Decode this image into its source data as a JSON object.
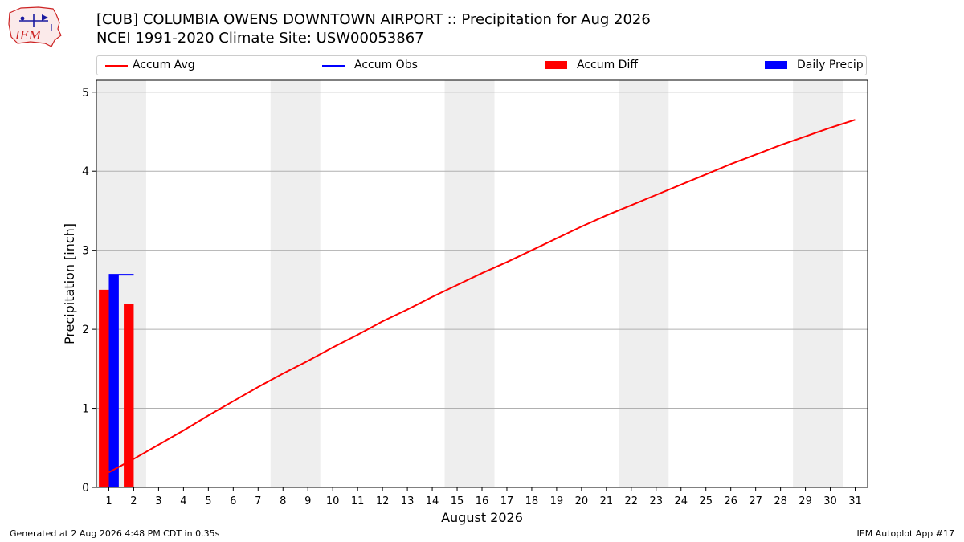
{
  "header": {
    "line1": "[CUB] COLUMBIA OWENS DOWNTOWN AIRPORT :: Precipitation for Aug 2026",
    "line2": "NCEI 1991-2020 Climate Site: USW00053867"
  },
  "logo": {
    "text": "IEM"
  },
  "legend": {
    "items": [
      {
        "label": "Accum Avg",
        "kind": "line",
        "color": "#ff0000"
      },
      {
        "label": "Accum Obs",
        "kind": "line",
        "color": "#0000ff"
      },
      {
        "label": "Accum Diff",
        "kind": "box",
        "color": "#ff0000"
      },
      {
        "label": "Daily Precip",
        "kind": "box",
        "color": "#0000ff"
      }
    ]
  },
  "footer": {
    "left": "Generated at 2 Aug 2026 4:48 PM CDT in 0.35s",
    "right": "IEM Autoplot App #17"
  },
  "chart_data": {
    "type": "bar",
    "xlabel": "August 2026",
    "ylabel": "Precipitation [inch]",
    "xlim": [
      0.5,
      31.5
    ],
    "ylim": [
      0,
      5.15
    ],
    "x": [
      1,
      2,
      3,
      4,
      5,
      6,
      7,
      8,
      9,
      10,
      11,
      12,
      13,
      14,
      15,
      16,
      17,
      18,
      19,
      20,
      21,
      22,
      23,
      24,
      25,
      26,
      27,
      28,
      29,
      30,
      31
    ],
    "yticks": [
      0,
      1,
      2,
      3,
      4,
      5
    ],
    "grid": "horizontal",
    "weekend_shading": [
      [
        0.5,
        2.5
      ],
      [
        7.5,
        9.5
      ],
      [
        14.5,
        16.5
      ],
      [
        21.5,
        23.5
      ],
      [
        28.5,
        30.5
      ]
    ],
    "shade_color": "#eeeeee",
    "series": [
      {
        "name": "Accum Avg",
        "kind": "line",
        "color": "#ff0000",
        "x": [
          1,
          2,
          3,
          4,
          5,
          6,
          7,
          8,
          9,
          10,
          11,
          12,
          13,
          14,
          15,
          16,
          17,
          18,
          19,
          20,
          21,
          22,
          23,
          24,
          25,
          26,
          27,
          28,
          29,
          30,
          31
        ],
        "values": [
          0.19,
          0.36,
          0.54,
          0.72,
          0.91,
          1.09,
          1.27,
          1.44,
          1.6,
          1.77,
          1.93,
          2.1,
          2.25,
          2.41,
          2.56,
          2.71,
          2.85,
          3.0,
          3.15,
          3.3,
          3.44,
          3.57,
          3.7,
          3.83,
          3.96,
          4.09,
          4.21,
          4.33,
          4.44,
          4.55,
          4.65
        ]
      },
      {
        "name": "Accum Obs",
        "kind": "line",
        "color": "#0000ff",
        "x": [
          1,
          2
        ],
        "values": [
          2.69,
          2.69
        ]
      },
      {
        "name": "Accum Diff",
        "kind": "bar",
        "color": "#ff0000",
        "offset": -0.2,
        "x": [
          1,
          2
        ],
        "values": [
          2.5,
          2.32
        ]
      },
      {
        "name": "Daily Precip",
        "kind": "bar",
        "color": "#0000ff",
        "offset": 0.2,
        "x": [
          1
        ],
        "values": [
          2.69
        ]
      }
    ]
  }
}
